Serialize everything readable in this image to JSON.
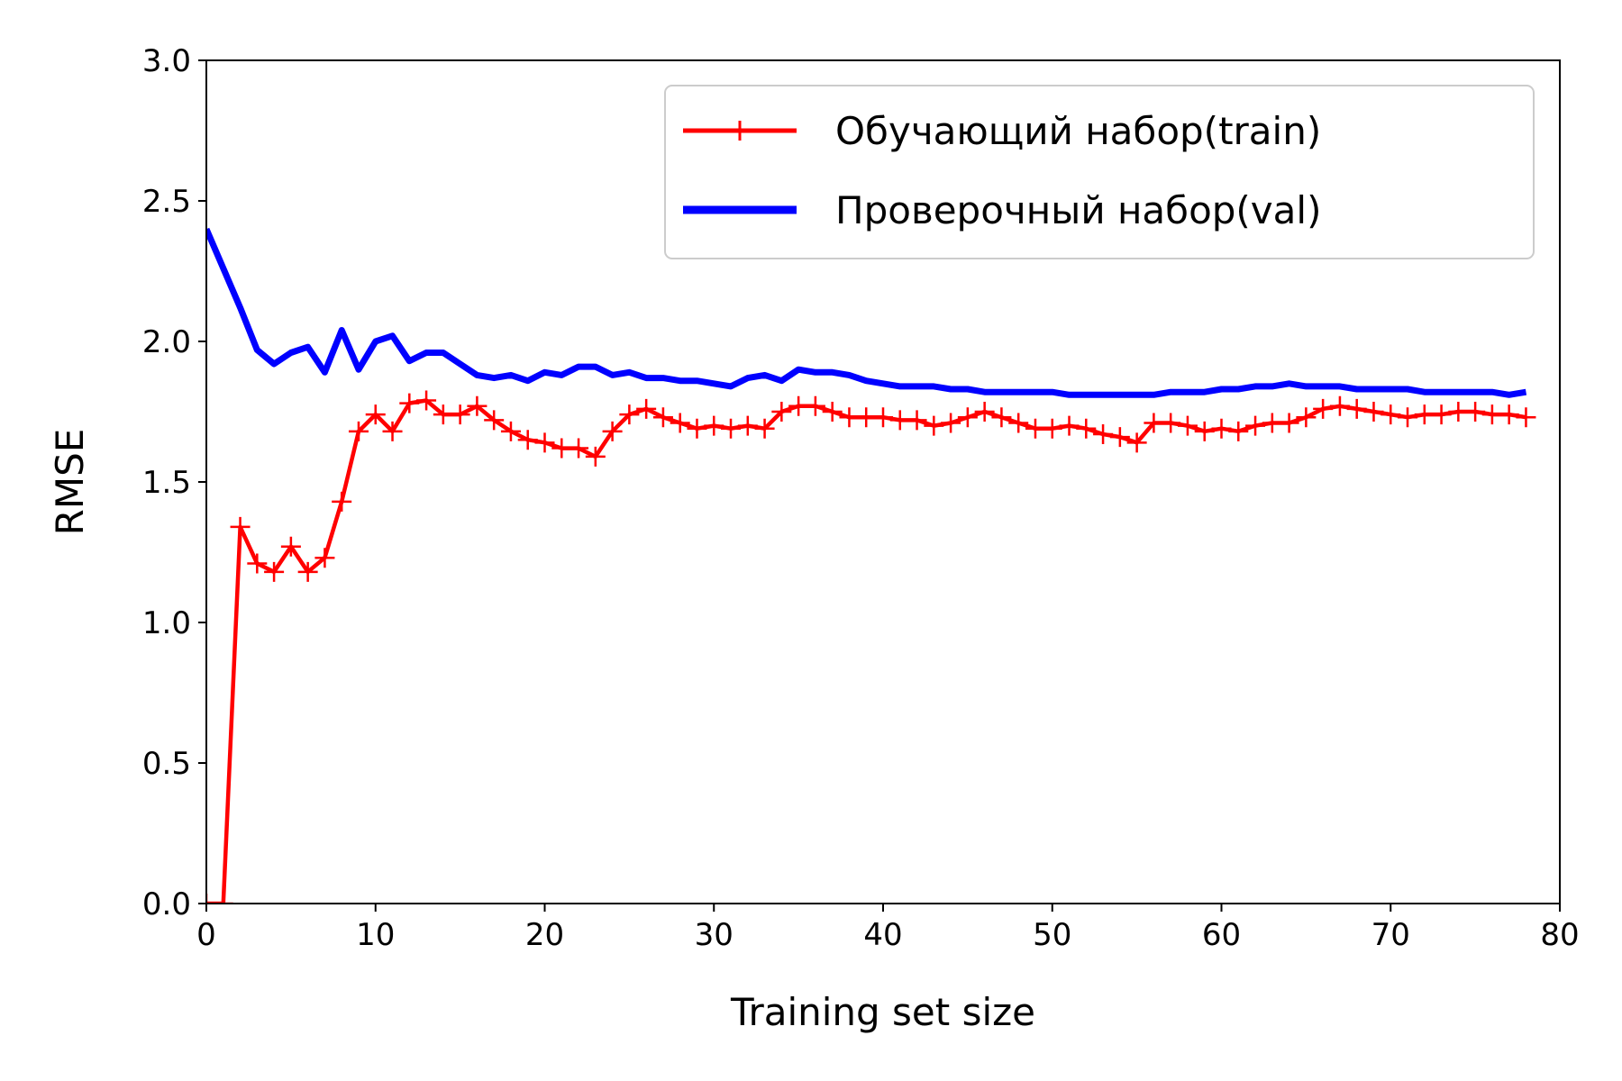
{
  "chart_data": {
    "type": "line",
    "xlabel": "Training set size",
    "ylabel": "RMSE",
    "xlim": [
      0,
      80
    ],
    "ylim": [
      0,
      3
    ],
    "x_ticks": [
      "0",
      "10",
      "20",
      "30",
      "40",
      "50",
      "60",
      "70",
      "80"
    ],
    "y_ticks": [
      "0.0",
      "0.5",
      "1.0",
      "1.5",
      "2.0",
      "2.5",
      "3.0"
    ],
    "grid": false,
    "legend_position": "top-right",
    "series": [
      {
        "name": "Обучающий набор(train)",
        "color": "#ff0000",
        "marker": "plus",
        "x": [
          0,
          1,
          2,
          3,
          4,
          5,
          6,
          7,
          8,
          9,
          10,
          11,
          12,
          13,
          14,
          15,
          16,
          17,
          18,
          19,
          20,
          21,
          22,
          23,
          24,
          25,
          26,
          27,
          28,
          29,
          30,
          31,
          32,
          33,
          34,
          35,
          36,
          37,
          38,
          39,
          40,
          41,
          42,
          43,
          44,
          45,
          46,
          47,
          48,
          49,
          50,
          51,
          52,
          53,
          54,
          55,
          56,
          57,
          58,
          59,
          60,
          61,
          62,
          63,
          64,
          65,
          66,
          67,
          68,
          69,
          70,
          71,
          72,
          73,
          74,
          75,
          76,
          77,
          78
        ],
        "y": [
          0.0,
          0.0,
          1.34,
          1.21,
          1.18,
          1.27,
          1.18,
          1.23,
          1.43,
          1.68,
          1.74,
          1.68,
          1.78,
          1.79,
          1.74,
          1.74,
          1.77,
          1.72,
          1.68,
          1.65,
          1.64,
          1.62,
          1.62,
          1.59,
          1.68,
          1.74,
          1.76,
          1.73,
          1.71,
          1.69,
          1.7,
          1.69,
          1.7,
          1.69,
          1.75,
          1.77,
          1.77,
          1.75,
          1.73,
          1.73,
          1.73,
          1.72,
          1.72,
          1.7,
          1.71,
          1.73,
          1.75,
          1.73,
          1.71,
          1.69,
          1.69,
          1.7,
          1.69,
          1.67,
          1.66,
          1.64,
          1.71,
          1.71,
          1.7,
          1.68,
          1.69,
          1.68,
          1.7,
          1.71,
          1.71,
          1.73,
          1.76,
          1.77,
          1.76,
          1.75,
          1.74,
          1.73,
          1.74,
          1.74,
          1.75,
          1.75,
          1.74,
          1.74,
          1.73
        ]
      },
      {
        "name": "Проверочный набор(val)",
        "color": "#0000ff",
        "marker": "none",
        "x": [
          0,
          1,
          2,
          3,
          4,
          5,
          6,
          7,
          8,
          9,
          10,
          11,
          12,
          13,
          14,
          15,
          16,
          17,
          18,
          19,
          20,
          21,
          22,
          23,
          24,
          25,
          26,
          27,
          28,
          29,
          30,
          31,
          32,
          33,
          34,
          35,
          36,
          37,
          38,
          39,
          40,
          41,
          42,
          43,
          44,
          45,
          46,
          47,
          48,
          49,
          50,
          51,
          52,
          53,
          54,
          55,
          56,
          57,
          58,
          59,
          60,
          61,
          62,
          63,
          64,
          65,
          66,
          67,
          68,
          69,
          70,
          71,
          72,
          73,
          74,
          75,
          76,
          77,
          78
        ],
        "y": [
          2.4,
          2.26,
          2.12,
          1.97,
          1.92,
          1.96,
          1.98,
          1.89,
          2.04,
          1.9,
          2.0,
          2.02,
          1.93,
          1.96,
          1.96,
          1.92,
          1.88,
          1.87,
          1.88,
          1.86,
          1.89,
          1.88,
          1.91,
          1.91,
          1.88,
          1.89,
          1.87,
          1.87,
          1.86,
          1.86,
          1.85,
          1.84,
          1.87,
          1.88,
          1.86,
          1.9,
          1.89,
          1.89,
          1.88,
          1.86,
          1.85,
          1.84,
          1.84,
          1.84,
          1.83,
          1.83,
          1.82,
          1.82,
          1.82,
          1.82,
          1.82,
          1.81,
          1.81,
          1.81,
          1.81,
          1.81,
          1.81,
          1.82,
          1.82,
          1.82,
          1.83,
          1.83,
          1.84,
          1.84,
          1.85,
          1.84,
          1.84,
          1.84,
          1.83,
          1.83,
          1.83,
          1.83,
          1.82,
          1.82,
          1.82,
          1.82,
          1.82,
          1.81,
          1.82
        ]
      }
    ]
  }
}
